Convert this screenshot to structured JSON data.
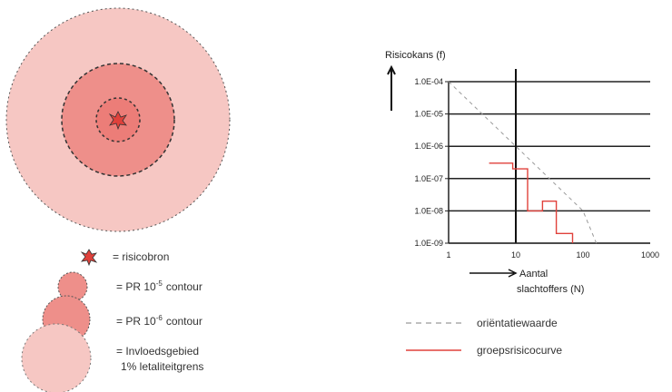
{
  "legend": {
    "source": "= risicobron",
    "pr_contour_1": "= PR 10",
    "pr_contour_1_sup": "-5",
    "pr_contour_1_tail": "contour",
    "pr_contour_2": "= PR 10",
    "pr_contour_2_sup": "-6",
    "pr_contour_2_tail": "contour",
    "influence_line1": "= Invloedsgebied",
    "influence_line2": "1% letaliteitgrens"
  },
  "chart_data": {
    "type": "line",
    "ylabel": "Risicokans (f)",
    "xlabel_line1": "Aantal",
    "xlabel_line2": "slachtoffers (N)",
    "scale": "log-log",
    "y_ticks": [
      "1.0E-04",
      "1.0E-05",
      "1.0E-06",
      "1.0E-07",
      "1.0E-08",
      "1.0E-09"
    ],
    "x_ticks": [
      "1",
      "10",
      "100",
      "1000"
    ],
    "xlim": [
      1,
      1000
    ],
    "ylim": [
      1e-09,
      0.0001
    ],
    "series": [
      {
        "name": "oriëntatiewaarde",
        "style": "dashed",
        "color": "#9a9a9a",
        "points": [
          [
            1,
            0.0001
          ],
          [
            10,
            1e-06
          ],
          [
            100,
            1e-08
          ],
          [
            158,
            1e-09
          ]
        ]
      },
      {
        "name": "groepsrisicocurve",
        "style": "solid",
        "color": "#e0413b",
        "points": [
          [
            4,
            3e-07
          ],
          [
            9,
            3e-07
          ],
          [
            9,
            2e-07
          ],
          [
            15,
            2e-07
          ],
          [
            15,
            1e-08
          ],
          [
            25,
            1e-08
          ],
          [
            25,
            2e-08
          ],
          [
            40,
            2e-08
          ],
          [
            40,
            2e-09
          ],
          [
            70,
            2e-09
          ],
          [
            70,
            1e-09
          ]
        ]
      }
    ],
    "legend": [
      {
        "label": "oriëntatiewaarde",
        "style": "dashed"
      },
      {
        "label": "groepsrisicocurve",
        "style": "solid"
      }
    ]
  }
}
